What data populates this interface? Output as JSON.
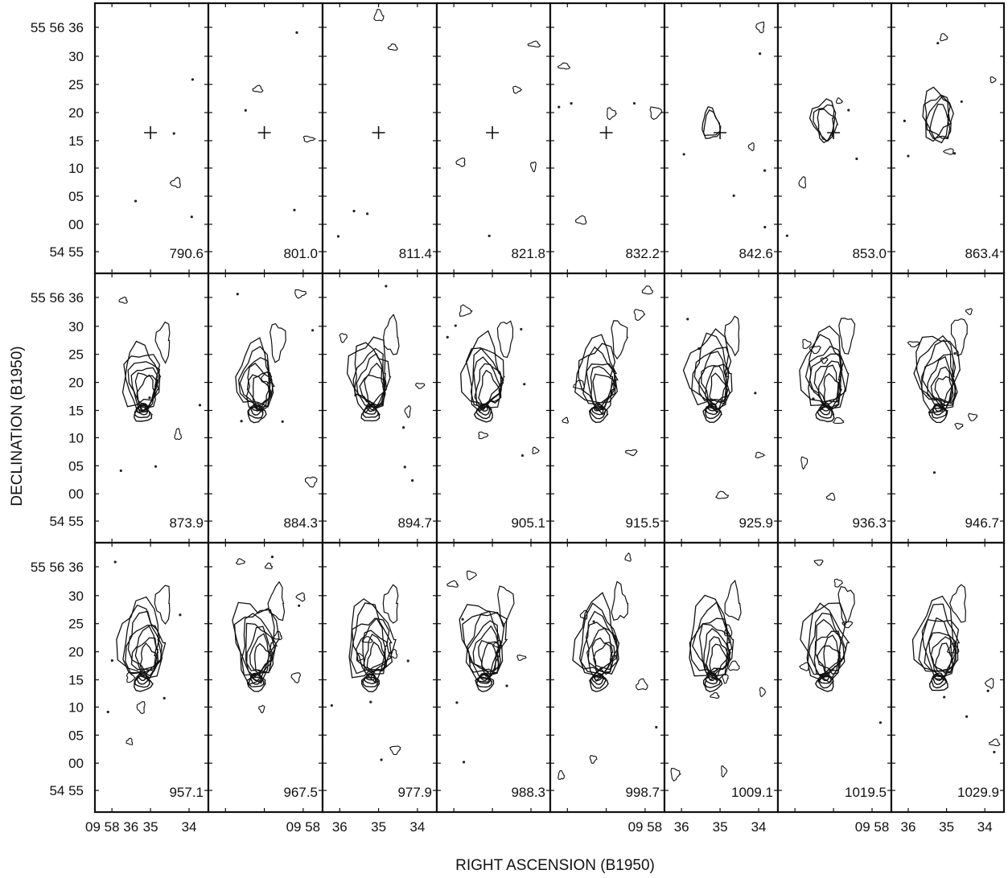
{
  "chart_data": {
    "type": "contour",
    "title": "",
    "xlabel": "RIGHT ASCENSION (B1950)",
    "ylabel": "DECLINATION (B1950)",
    "grid": "channel-map",
    "layout": {
      "rows": 3,
      "cols": 8
    },
    "y_ticks": [
      "55 56 36",
      "30",
      "25",
      "20",
      "15",
      "10",
      "05",
      "00",
      "54 55"
    ],
    "x_ticks": {
      "left_panel": [
        "09 58 36",
        "35",
        "34"
      ],
      "row3_panel2": [
        "09 58"
      ],
      "row3_panel3": [
        "36",
        "35",
        "34"
      ],
      "row3_panel5": [
        "09 58"
      ],
      "row3_panel6": [
        "36",
        "35",
        "34"
      ],
      "row3_panel7": [
        "09 58"
      ],
      "row3_panel8": [
        "36",
        "35",
        "34"
      ]
    },
    "velocities": [
      "790.6",
      "801.0",
      "811.4",
      "821.8",
      "832.2",
      "842.6",
      "853.0",
      "863.4",
      "873.9",
      "884.3",
      "894.7",
      "905.1",
      "915.5",
      "925.9",
      "936.3",
      "946.7",
      "957.1",
      "967.5",
      "977.9",
      "988.3",
      "998.7",
      "1009.1",
      "1019.5",
      "1029.9"
    ],
    "center_marker_panels": [
      0,
      1,
      2,
      3,
      4,
      5,
      6
    ],
    "emission_levels": [
      0,
      0,
      0,
      0,
      0,
      0.3,
      0.45,
      0.6,
      0.8,
      0.8,
      0.9,
      0.9,
      0.9,
      1,
      1,
      1,
      1,
      1,
      1,
      1,
      1,
      1,
      1,
      1
    ]
  }
}
